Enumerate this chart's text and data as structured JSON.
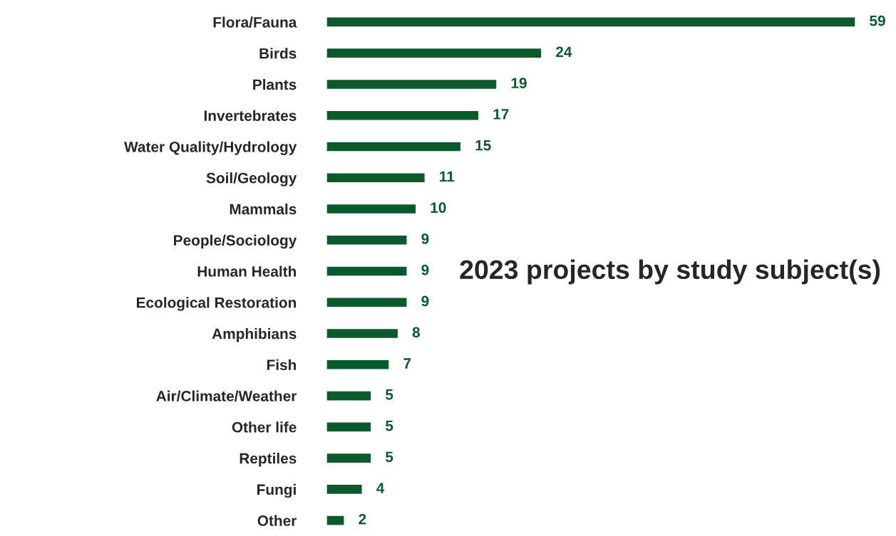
{
  "chart_data": {
    "type": "bar",
    "orientation": "horizontal",
    "title": "2023 projects by study subject(s)",
    "categories": [
      "Flora/Fauna",
      "Birds",
      "Plants",
      "Invertebrates",
      "Water Quality/Hydrology",
      "Soil/Geology",
      "Mammals",
      "People/Sociology",
      "Human Health",
      "Ecological Restoration",
      "Amphibians",
      "Fish",
      "Air/Climate/Weather",
      "Other life",
      "Reptiles",
      "Fungi",
      "Other"
    ],
    "values": [
      59,
      24,
      19,
      17,
      15,
      11,
      10,
      9,
      9,
      9,
      8,
      7,
      5,
      5,
      5,
      4,
      2
    ],
    "color": "#0b5a2e",
    "data_labels": true,
    "tick_labels": "y"
  }
}
